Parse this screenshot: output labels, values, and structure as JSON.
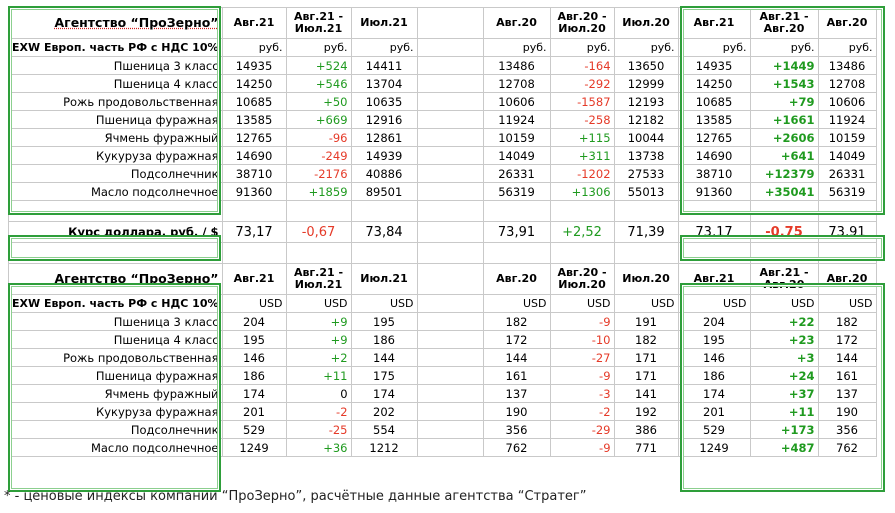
{
  "colors": {
    "border_green": "#2e9e3a",
    "negative": "#e53a28",
    "positive": "#1f9a1f"
  },
  "columns": [
    "Авг.21",
    "Авг.21 - Июл.21",
    "Июл.21",
    "",
    "Авг.20",
    "Авг.20 - Июл.20",
    "Июл.20",
    "Авг.21",
    "Авг.21 - Авг.20",
    "Авг.20"
  ],
  "rub": {
    "title": "Агентство “ПроЗерно”",
    "header": [
      "Авг.21",
      "Авг.21 -\nИюл.21",
      "Июл.21",
      "",
      "Авг.20",
      "Авг.20 -\nИюл.20",
      "Июл.20",
      "Авг.21",
      "Авг.21 -\nАвг.20",
      "Авг.20"
    ],
    "unit_label": "EXW Европ. часть РФ с НДС 10%",
    "units": [
      "руб.",
      "руб.",
      "руб.",
      "",
      "руб.",
      "руб.",
      "руб.",
      "руб.",
      "руб.",
      "руб."
    ],
    "rows": [
      {
        "name": "Пшеница 3 класс",
        "v": [
          "14935",
          "+524",
          "14411",
          "",
          "13486",
          "-164",
          "13650",
          "14935",
          "+1449",
          "13486"
        ]
      },
      {
        "name": "Пшеница 4 класс",
        "v": [
          "14250",
          "+546",
          "13704",
          "",
          "12708",
          "-292",
          "12999",
          "14250",
          "+1543",
          "12708"
        ]
      },
      {
        "name": "Рожь продовольственная",
        "v": [
          "10685",
          "+50",
          "10635",
          "",
          "10606",
          "-1587",
          "12193",
          "10685",
          "+79",
          "10606"
        ]
      },
      {
        "name": "Пшеница фуражная",
        "v": [
          "13585",
          "+669",
          "12916",
          "",
          "11924",
          "-258",
          "12182",
          "13585",
          "+1661",
          "11924"
        ]
      },
      {
        "name": "Ячмень фуражный",
        "v": [
          "12765",
          "-96",
          "12861",
          "",
          "10159",
          "+115",
          "10044",
          "12765",
          "+2606",
          "10159"
        ]
      },
      {
        "name": "Кукуруза фуражная",
        "v": [
          "14690",
          "-249",
          "14939",
          "",
          "14049",
          "+311",
          "13738",
          "14690",
          "+641",
          "14049"
        ]
      },
      {
        "name": "Подсолнечник",
        "v": [
          "38710",
          "-2176",
          "40886",
          "",
          "26331",
          "-1202",
          "27533",
          "38710",
          "+12379",
          "26331"
        ]
      },
      {
        "name": "Масло подсолнечное",
        "v": [
          "91360",
          "+1859",
          "89501",
          "",
          "56319",
          "+1306",
          "55013",
          "91360",
          "+35041",
          "56319"
        ]
      }
    ]
  },
  "fx": {
    "label": "Курс доллара, руб. / $",
    "v": [
      "73,17",
      "-0,67",
      "73,84",
      "",
      "73,91",
      "+2,52",
      "71,39",
      "73,17",
      "-0,75",
      "73,91"
    ]
  },
  "usd": {
    "title": "Агентство “ПроЗерно”",
    "header": [
      "Авг.21",
      "Авг.21 -\nИюл.21",
      "Июл.21",
      "",
      "Авг.20",
      "Авг.20 -\nИюл.20",
      "Июл.20",
      "Авг.21",
      "Авг.21 -\nАвг.20",
      "Авг.20"
    ],
    "unit_label": "EXW Европ. часть РФ с НДС 10%",
    "units": [
      "USD",
      "USD",
      "USD",
      "",
      "USD",
      "USD",
      "USD",
      "USD",
      "USD",
      "USD"
    ],
    "rows": [
      {
        "name": "Пшеница 3 класс",
        "v": [
          "204",
          "+9",
          "195",
          "",
          "182",
          "-9",
          "191",
          "204",
          "+22",
          "182"
        ]
      },
      {
        "name": "Пшеница 4 класс",
        "v": [
          "195",
          "+9",
          "186",
          "",
          "172",
          "-10",
          "182",
          "195",
          "+23",
          "172"
        ]
      },
      {
        "name": "Рожь продовольственная",
        "v": [
          "146",
          "+2",
          "144",
          "",
          "144",
          "-27",
          "171",
          "146",
          "+3",
          "144"
        ]
      },
      {
        "name": "Пшеница фуражная",
        "v": [
          "186",
          "+11",
          "175",
          "",
          "161",
          "-9",
          "171",
          "186",
          "+24",
          "161"
        ]
      },
      {
        "name": "Ячмень фуражный",
        "v": [
          "174",
          "0",
          "174",
          "",
          "137",
          "-3",
          "141",
          "174",
          "+37",
          "137"
        ]
      },
      {
        "name": "Кукуруза фуражная",
        "v": [
          "201",
          "-2",
          "202",
          "",
          "190",
          "-2",
          "192",
          "201",
          "+11",
          "190"
        ]
      },
      {
        "name": "Подсолнечник",
        "v": [
          "529",
          "-25",
          "554",
          "",
          "356",
          "-29",
          "386",
          "529",
          "+173",
          "356"
        ]
      },
      {
        "name": "Масло подсолнечное",
        "v": [
          "1249",
          "+36",
          "1212",
          "",
          "762",
          "-9",
          "771",
          "1249",
          "+487",
          "762"
        ]
      }
    ]
  },
  "footnote": "* - ценовые индексы компании “ПроЗерно”, расчётные данные агентства “Стратег”"
}
